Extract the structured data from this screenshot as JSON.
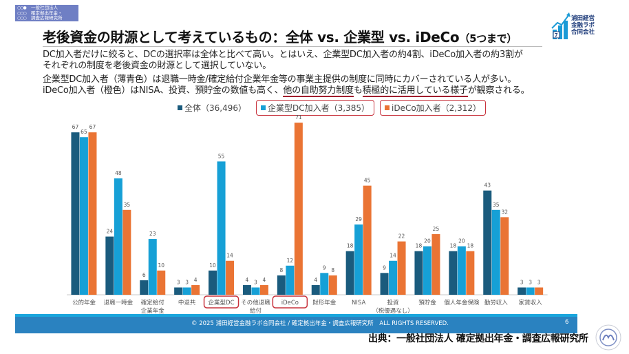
{
  "org_logo": {
    "lines": [
      "一般社団法人",
      "確定拠出年金・",
      "調査広報研究所"
    ]
  },
  "title": {
    "main": "老後資金の財源として考えているもの：全体 vs. 企業型 vs. iDeCo",
    "suffix": "（5つまで）"
  },
  "brand": {
    "lines": [
      "浦田経営",
      "金融ラボ",
      "合同会社"
    ],
    "icon": "rising-chart-logo-icon"
  },
  "description": {
    "line1": "DC加入者だけに絞ると、DCの選択率は全体と比べて高い。とはいえ、企業型DC加入者の約4割、iDeCo加入者の約3割が",
    "line2": "それぞれの制度を老後資金の財源として選択していない。",
    "line3": "企業型DC加入者（薄青色）は退職一時金/確定給付企業年金等の事業主提供の制度に同時にカバーされている人が多い。",
    "line4_a": "iDeCo加入者（橙色）はNISA、投資、預貯金の数値も高く、",
    "line4_b": "他の自助努力制度",
    "line4_c": "も",
    "line4_d": "積極的に活用している様子",
    "line4_e": "が観察される。"
  },
  "chart_data": {
    "type": "bar",
    "title": "",
    "xlabel": "",
    "ylabel": "",
    "ylim": [
      0,
      75
    ],
    "grid": false,
    "legend_position": "top-center",
    "categories": [
      "公的年金",
      "退職一時金",
      "確定給付\n企業年金",
      "中退共",
      "企業型DC",
      "その他退職\n給付",
      "iDeCo",
      "財形年金",
      "NISA",
      "投資\n（税優遇なし）",
      "預貯金",
      "個人年金保険",
      "勤労収入",
      "家賃収入"
    ],
    "highlighted_categories": [
      "企業型DC",
      "iDeCo"
    ],
    "series": [
      {
        "name": "全体（36,496）",
        "color": "#1a5b7d",
        "boxed": false,
        "values": [
          67,
          24,
          6,
          3,
          10,
          4,
          8,
          4,
          18,
          9,
          18,
          18,
          43,
          3
        ]
      },
      {
        "name": "企業型DC加入者（3,385）",
        "color": "#16a0d6",
        "boxed": true,
        "values": [
          65,
          48,
          23,
          3,
          55,
          3,
          12,
          9,
          29,
          14,
          20,
          20,
          35,
          3
        ]
      },
      {
        "name": "iDeCo加入者（2,312）",
        "color": "#ea7434",
        "boxed": true,
        "values": [
          67,
          35,
          10,
          4,
          14,
          4,
          71,
          8,
          45,
          22,
          25,
          18,
          32,
          3
        ]
      }
    ]
  },
  "footer": {
    "copyright": "© 2025 浦田経営金融ラボ合同会社 / 確定拠出年金・調査広報研究所　ALL RIGHTS RESERVED.",
    "page_number": "6"
  },
  "source": "出典：一般社団法人 確定拠出年金・調査広報研究所",
  "seal": {
    "icon": "money-sense-college-seal-icon"
  }
}
